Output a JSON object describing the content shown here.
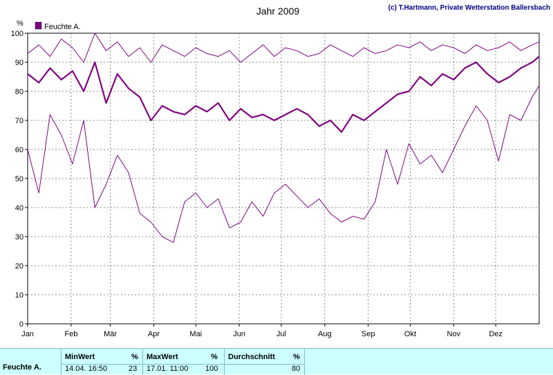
{
  "chart_data": {
    "type": "line",
    "title": "Jahr 2009",
    "copyright": "(c) T.Hartmann, Private Wetterstation Ballersbach",
    "ylabel": "%",
    "ylim": [
      0,
      100
    ],
    "yticks": [
      0,
      10,
      20,
      30,
      40,
      50,
      60,
      70,
      80,
      90,
      100
    ],
    "xlim": [
      0,
      365
    ],
    "months": [
      {
        "label": "Jan",
        "day": 0
      },
      {
        "label": "Feb",
        "day": 31
      },
      {
        "label": "Mär",
        "day": 59
      },
      {
        "label": "Apr",
        "day": 90
      },
      {
        "label": "Mai",
        "day": 120
      },
      {
        "label": "Jun",
        "day": 151
      },
      {
        "label": "Jul",
        "day": 181
      },
      {
        "label": "Aug",
        "day": 212
      },
      {
        "label": "Sep",
        "day": 243
      },
      {
        "label": "Okt",
        "day": 273
      },
      {
        "label": "Nov",
        "day": 304
      },
      {
        "label": "Dez",
        "day": 334
      }
    ],
    "legend": {
      "label": "Feuchte A.",
      "position": "top-left"
    },
    "grid": true,
    "color": "#800080",
    "series": [
      {
        "name": "Feuchte A.",
        "role": "mean",
        "x": [
          0,
          8,
          16,
          24,
          32,
          40,
          48,
          56,
          64,
          72,
          80,
          88,
          96,
          104,
          112,
          120,
          128,
          136,
          144,
          152,
          160,
          168,
          176,
          184,
          192,
          200,
          208,
          216,
          224,
          232,
          240,
          248,
          256,
          264,
          272,
          280,
          288,
          296,
          304,
          312,
          320,
          328,
          336,
          344,
          352,
          360,
          365
        ],
        "values": [
          86,
          83,
          88,
          84,
          87,
          80,
          90,
          76,
          86,
          81,
          78,
          70,
          75,
          73,
          72,
          75,
          73,
          76,
          70,
          74,
          71,
          72,
          70,
          72,
          74,
          72,
          68,
          70,
          66,
          72,
          70,
          73,
          76,
          79,
          80,
          85,
          82,
          86,
          84,
          88,
          90,
          86,
          83,
          85,
          88,
          90,
          92
        ]
      },
      {
        "name": "Feuchte A. Max",
        "role": "max",
        "x": [
          0,
          8,
          16,
          24,
          32,
          40,
          48,
          56,
          64,
          72,
          80,
          88,
          96,
          104,
          112,
          120,
          128,
          136,
          144,
          152,
          160,
          168,
          176,
          184,
          192,
          200,
          208,
          216,
          224,
          232,
          240,
          248,
          256,
          264,
          272,
          280,
          288,
          296,
          304,
          312,
          320,
          328,
          336,
          344,
          352,
          360,
          365
        ],
        "values": [
          93,
          96,
          92,
          98,
          95,
          90,
          100,
          94,
          97,
          92,
          95,
          90,
          96,
          94,
          92,
          95,
          93,
          92,
          94,
          90,
          93,
          96,
          92,
          95,
          94,
          92,
          93,
          96,
          94,
          92,
          95,
          93,
          94,
          96,
          95,
          97,
          94,
          96,
          95,
          93,
          96,
          94,
          95,
          97,
          94,
          96,
          97
        ]
      },
      {
        "name": "Feuchte A. Min",
        "role": "min",
        "x": [
          0,
          8,
          16,
          24,
          32,
          40,
          48,
          56,
          64,
          72,
          80,
          88,
          96,
          104,
          112,
          120,
          128,
          136,
          144,
          152,
          160,
          168,
          176,
          184,
          192,
          200,
          208,
          216,
          224,
          232,
          240,
          248,
          256,
          264,
          272,
          280,
          288,
          296,
          304,
          312,
          320,
          328,
          336,
          344,
          352,
          360,
          365
        ],
        "values": [
          60,
          45,
          72,
          65,
          55,
          70,
          40,
          48,
          58,
          52,
          38,
          35,
          30,
          28,
          42,
          45,
          40,
          43,
          33,
          35,
          42,
          37,
          45,
          48,
          44,
          40,
          43,
          38,
          35,
          37,
          36,
          42,
          60,
          48,
          62,
          55,
          58,
          52,
          60,
          68,
          75,
          70,
          56,
          72,
          70,
          78,
          82
        ]
      }
    ]
  },
  "stats": {
    "series_label": "Feuchte A.",
    "min": {
      "header": "MinWert",
      "unit": "%",
      "datetime": "14.04.  16:50",
      "value": "23"
    },
    "max": {
      "header": "MaxWert",
      "unit": "%",
      "datetime": "17.01.  11:00",
      "value": "100"
    },
    "avg": {
      "header": "Durchschnitt",
      "unit": "%",
      "value": "80"
    }
  }
}
